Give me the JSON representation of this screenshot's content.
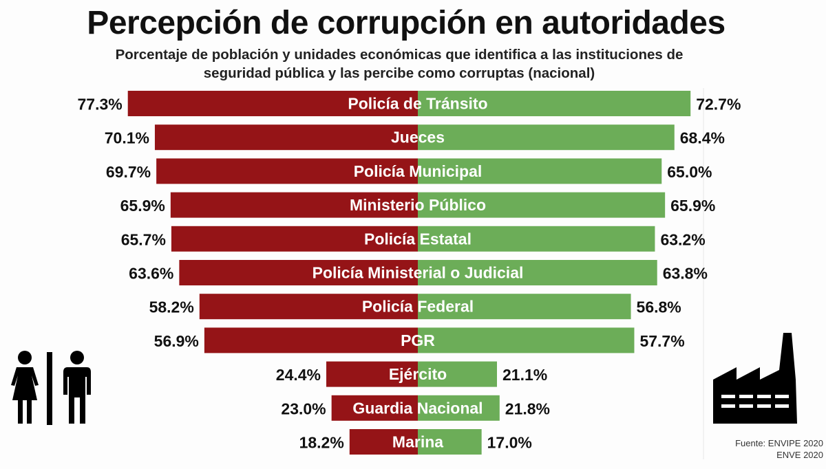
{
  "title": "Percepción de corrupción en autoridades",
  "subtitle_line1": "Porcentaje de población y unidades económicas que identifica a las instituciones de",
  "subtitle_line2": "seguridad pública y las percibe como corruptas (nacional)",
  "source_line1": "Fuente: ENVIPE 2020",
  "source_line2": "ENVE 2020",
  "icons": {
    "left": "people-icon",
    "right": "factory-icon"
  },
  "colors": {
    "left_series": "#951417",
    "right_series": "#6cad58",
    "bar_label": "#ffffff",
    "value_label": "#111111"
  },
  "chart_data": {
    "type": "bar",
    "orientation": "horizontal-diverging",
    "categories": [
      "Policía de Tránsito",
      "Jueces",
      "Policía Municipal",
      "Ministerio Público",
      "Policía Estatal",
      "Policía Ministerial o Judicial",
      "Policía Federal",
      "PGR",
      "Ejército",
      "Guardia Nacional",
      "Marina"
    ],
    "series": [
      {
        "values": [
          77.3,
          70.1,
          69.7,
          65.9,
          65.7,
          63.6,
          58.2,
          56.9,
          24.4,
          23.0,
          18.2
        ],
        "labels": [
          "77.3%",
          "70.1%",
          "69.7%",
          "65.9%",
          "65.7%",
          "63.6%",
          "58.2%",
          "56.9%",
          "24.4%",
          "23.0%",
          "18.2%"
        ],
        "color": "#951417",
        "side": "left"
      },
      {
        "values": [
          72.7,
          68.4,
          65.0,
          65.9,
          63.2,
          63.8,
          56.8,
          57.7,
          21.1,
          21.8,
          17.0
        ],
        "labels": [
          "72.7%",
          "68.4%",
          "65.0%",
          "65.9%",
          "63.2%",
          "63.8%",
          "56.8%",
          "57.7%",
          "21.1%",
          "21.8%",
          "17.0%"
        ],
        "color": "#6cad58",
        "side": "right"
      }
    ],
    "unit": "%",
    "xlim": [
      0,
      80
    ]
  }
}
